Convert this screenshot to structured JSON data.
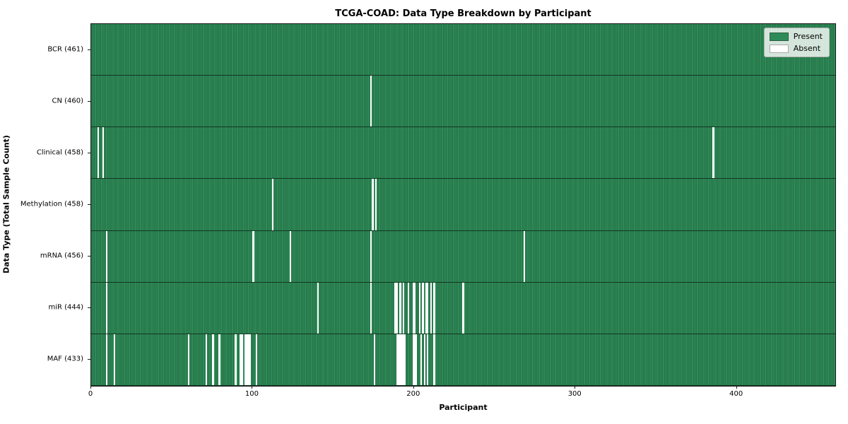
{
  "title": "TCGA-COAD: Data Type Breakdown by Participant",
  "legend": {
    "present_label": "Present",
    "absent_label": "Absent"
  },
  "colors": {
    "present": "#2e8b57",
    "absent": "#ffffff"
  },
  "chart_data": {
    "type": "heatmap",
    "title": "TCGA-COAD: Data Type Breakdown by Participant",
    "xlabel": "Participant",
    "ylabel": "Data Type (Total Sample Count)",
    "legend": [
      "Present",
      "Absent"
    ],
    "legend_position": "upper right",
    "grid": false,
    "n_participants": 461,
    "x_ticks": [
      0,
      100,
      200,
      300,
      400
    ],
    "xlim": [
      0,
      461
    ],
    "rows": [
      {
        "label": "BCR (461)",
        "data_type": "BCR",
        "total": 461,
        "absent_participants": []
      },
      {
        "label": "CN (460)",
        "data_type": "CN",
        "total": 460,
        "absent_participants": [
          173
        ]
      },
      {
        "label": "Clinical (458)",
        "data_type": "Clinical",
        "total": 458,
        "absent_participants": [
          4,
          7,
          385
        ]
      },
      {
        "label": "Methylation (458)",
        "data_type": "Methylation",
        "total": 458,
        "absent_participants": [
          112,
          174,
          176
        ]
      },
      {
        "label": "mRNA (456)",
        "data_type": "mRNA",
        "total": 456,
        "absent_participants": [
          9,
          100,
          123,
          173,
          268
        ]
      },
      {
        "label": "miR (444)",
        "data_type": "miR",
        "total": 444,
        "absent_participants": [
          9,
          140,
          173,
          188,
          189,
          191,
          193,
          196,
          199,
          200,
          203,
          205,
          207,
          208,
          210,
          212,
          230
        ]
      },
      {
        "label": "MAF (433)",
        "data_type": "MAF",
        "total": 433,
        "absent_participants": [
          9,
          14,
          60,
          71,
          75,
          79,
          89,
          92,
          93,
          95,
          96,
          97,
          98,
          102,
          175,
          189,
          190,
          191,
          192,
          193,
          194,
          199,
          200,
          201,
          204,
          206,
          208,
          212
        ]
      }
    ]
  }
}
